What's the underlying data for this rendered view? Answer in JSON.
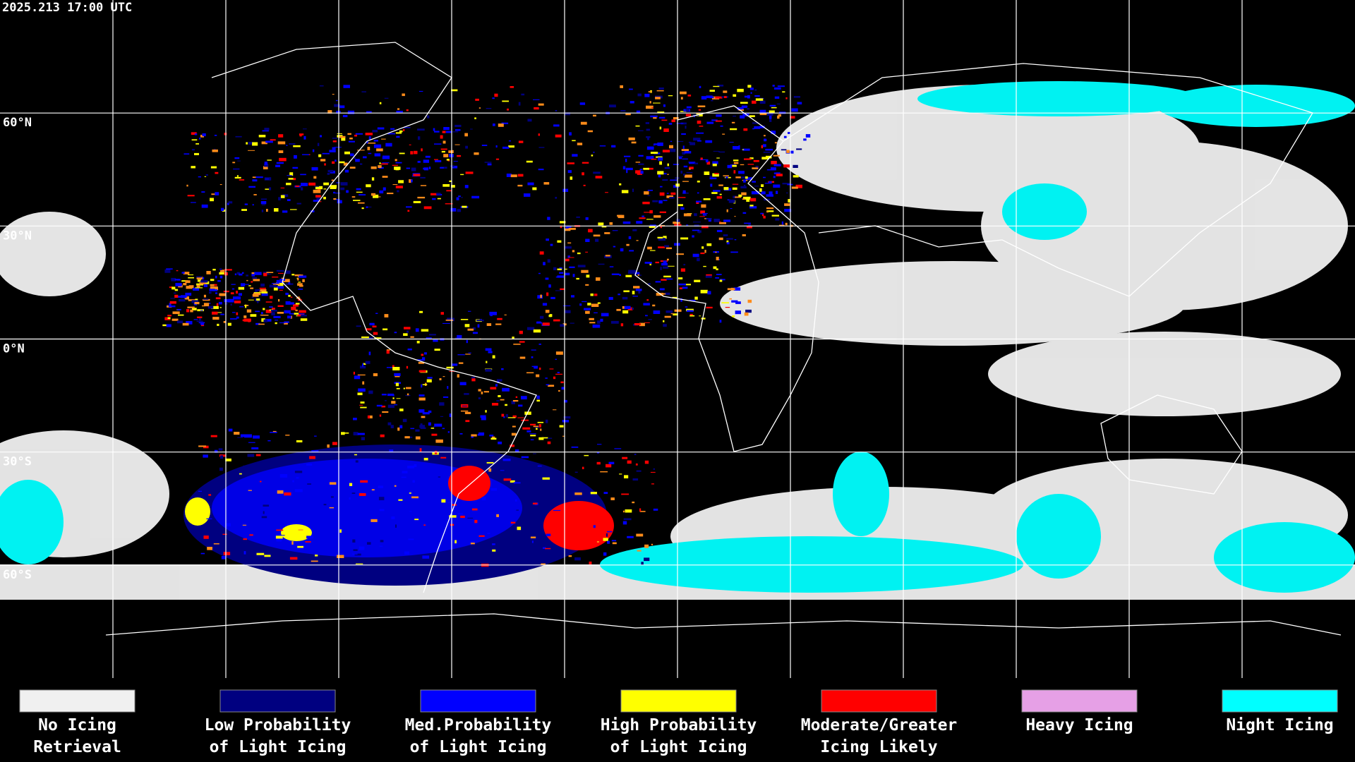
{
  "header": {
    "timestamp": "2025.213 17:00 UTC"
  },
  "map": {
    "lat_labels": [
      "60°N",
      "30°N",
      "0°N",
      "30°S",
      "60°S"
    ]
  },
  "legend": {
    "items": [
      {
        "lines": [
          "No Icing",
          "Retrieval"
        ],
        "color": "#f0f0f0"
      },
      {
        "lines": [
          "Low Probability",
          "of Light Icing"
        ],
        "color": "#000080"
      },
      {
        "lines": [
          "Med.Probability",
          "of Light Icing"
        ],
        "color": "#0000ff"
      },
      {
        "lines": [
          "High Probability",
          "of Light Icing"
        ],
        "color": "#ffff00"
      },
      {
        "lines": [
          "Moderate/Greater",
          "Icing Likely"
        ],
        "color": "#ff0000"
      },
      {
        "lines": [
          "Heavy Icing"
        ],
        "color": "#e6a0e6"
      },
      {
        "lines": [
          "Night Icing"
        ],
        "color": "#00ffff"
      }
    ]
  }
}
